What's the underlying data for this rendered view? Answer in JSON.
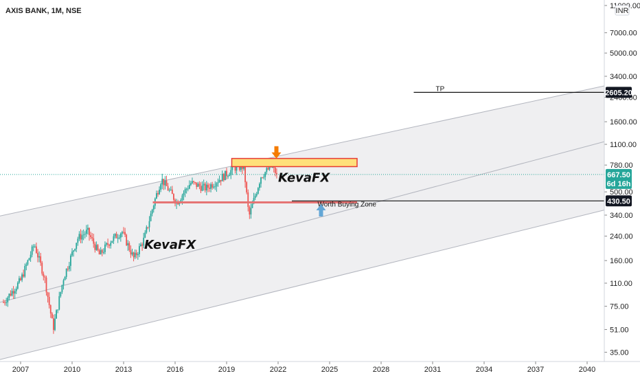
{
  "header": {
    "title": "AXIS BANK, 1M, NSE"
  },
  "currency": "INR",
  "watermarks": [
    "KevaFX",
    "KevaFX"
  ],
  "price_badges": {
    "tp": "2605.20",
    "current": "667.50",
    "countdown": "6d 16h",
    "buy": "430.50"
  },
  "annotations": {
    "tp_label": "TP",
    "buy_zone_label": "Worth Buying Zone"
  },
  "colors": {
    "up": "#26a69a",
    "down": "#ef5350",
    "channel_fill": "#efeff1",
    "channel_line": "#b2b5be",
    "resistance_fill": "#ffe07a",
    "resistance_border": "#e53935",
    "support_line": "#e57373",
    "arrow_down": "#f57c00",
    "arrow_up": "#64a7d6",
    "current_badge": "#26a69a",
    "dark_badge": "#131722"
  },
  "icons": {
    "arrow_down": "down-arrow-icon",
    "arrow_up": "up-arrow-icon"
  },
  "chart_data": {
    "type": "candlestick",
    "title": "AXIS BANK, 1M, NSE",
    "scale": "log",
    "ylim": [
      30,
      11000
    ],
    "xlim": [
      2005.8,
      2041
    ],
    "x_ticks": [
      "2007",
      "2010",
      "2013",
      "2016",
      "2019",
      "2022",
      "2025",
      "2028",
      "2031",
      "2034",
      "2037",
      "2040"
    ],
    "y_ticks": [
      "11000.00",
      "7000.00",
      "5000.00",
      "3400.00",
      "2400.00",
      "1600.00",
      "1100.00",
      "780.00",
      "500.00",
      "340.00",
      "240.00",
      "160.00",
      "110.00",
      "75.00",
      "51.00",
      "35.00"
    ],
    "price_path": [
      [
        2006.0,
        80
      ],
      [
        2007.0,
        115
      ],
      [
        2007.8,
        210
      ],
      [
        2008.4,
        120
      ],
      [
        2008.9,
        52
      ],
      [
        2009.5,
        120
      ],
      [
        2010.3,
        230
      ],
      [
        2010.9,
        260
      ],
      [
        2011.6,
        175
      ],
      [
        2012.2,
        220
      ],
      [
        2012.9,
        260
      ],
      [
        2013.6,
        165
      ],
      [
        2014.2,
        230
      ],
      [
        2014.8,
        430
      ],
      [
        2015.2,
        620
      ],
      [
        2016.1,
        420
      ],
      [
        2016.9,
        580
      ],
      [
        2017.8,
        530
      ],
      [
        2018.6,
        620
      ],
      [
        2019.5,
        750
      ],
      [
        2020.0,
        760
      ],
      [
        2020.3,
        330
      ],
      [
        2021.0,
        650
      ],
      [
        2021.6,
        760
      ],
      [
        2021.95,
        667.5
      ]
    ],
    "channel": {
      "upper": [
        [
          2005.8,
          335
        ],
        [
          2041,
          2900
        ]
      ],
      "middle": [
        [
          2005.8,
          80
        ],
        [
          2041,
          1150
        ]
      ],
      "lower": [
        [
          2005.8,
          31
        ],
        [
          2041,
          370
        ]
      ]
    },
    "levels": {
      "tp": 2605.2,
      "current": 667.5,
      "buy": 430.5
    },
    "resistance_zone": {
      "x": [
        2019.3,
        2026.6
      ],
      "y": [
        760,
        870
      ]
    },
    "support_line": {
      "x": [
        2014.7,
        2026.6
      ],
      "y": 420
    },
    "tp_segment": {
      "x": [
        2029.9,
        2041
      ]
    },
    "buy_segment": {
      "x": [
        2022.8,
        2041
      ]
    },
    "down_arrow": {
      "x": 2021.9,
      "y": 930
    },
    "up_arrow": {
      "x": 2024.5,
      "y": 390
    },
    "watermark_positions": [
      [
        2014.2,
        195
      ],
      [
        2022.0,
        590
      ]
    ]
  }
}
